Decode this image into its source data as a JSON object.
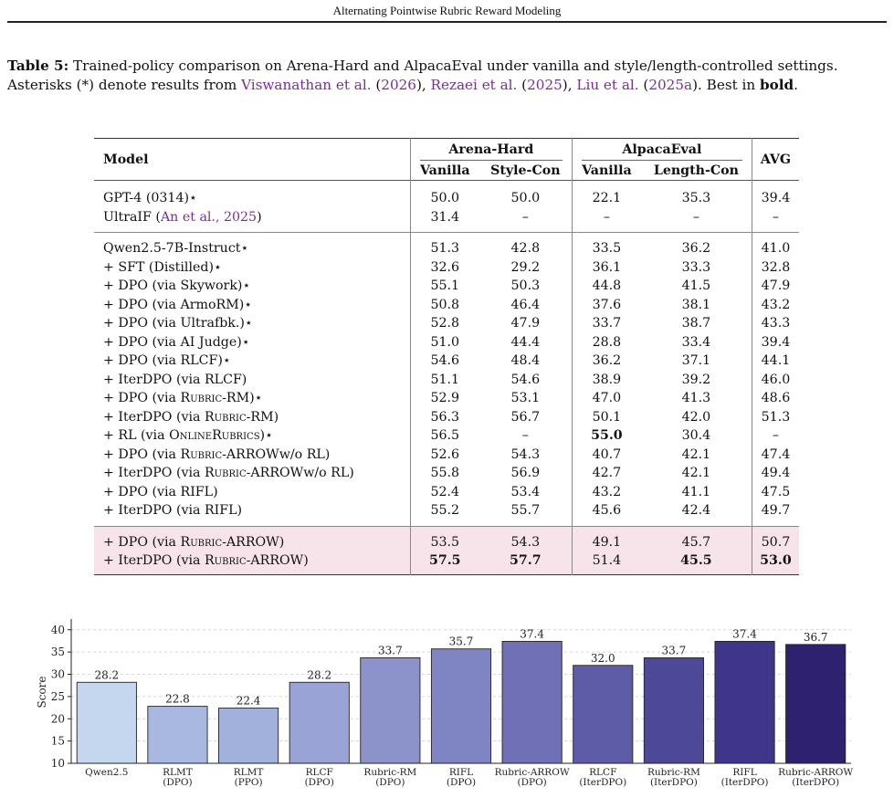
{
  "running_head": "Alternating Pointwise Rubric Reward Modeling",
  "caption": {
    "label": "Table 5:",
    "text_a": " Trained-policy comparison on Arena-Hard and AlpacaEval under vanilla and style/length-controlled settings. Asterisks (*) denote results from ",
    "cite1_name": "Viswanathan et al.",
    "cite1_year": "2026",
    "cite2_name": "Rezaei et al.",
    "cite2_year": "2025",
    "cite3_name": "Liu et al.",
    "cite3_year": "2025a",
    "text_b": "Best in ",
    "bold_word": "bold",
    "period": "."
  },
  "table": {
    "model_header": "Model",
    "group1": "Arena-Hard",
    "group2": "AlpacaEval",
    "avg_header": "AVG",
    "sub1": "Vanilla",
    "sub2": "Style-Con",
    "sub3": "Vanilla",
    "sub4": "Length-Con",
    "sections": [
      [
        {
          "model": "GPT-4 (0314)⋆",
          "v": [
            "50.0",
            "50.0",
            "22.1",
            "35.3",
            "39.4"
          ]
        },
        {
          "model_pre": "UltraIF (",
          "cite": "An et al., 2025",
          "model_post": ")",
          "v": [
            "31.4",
            "–",
            "–",
            "–",
            "–"
          ]
        }
      ],
      [
        {
          "model": "Qwen2.5-7B-Instruct⋆",
          "v": [
            "51.3",
            "42.8",
            "33.5",
            "36.2",
            "41.0"
          ]
        },
        {
          "model": "+ SFT (Distilled)⋆",
          "v": [
            "32.6",
            "29.2",
            "36.1",
            "33.3",
            "32.8"
          ]
        },
        {
          "model": "+ DPO (via Skywork)⋆",
          "v": [
            "55.1",
            "50.3",
            "44.8",
            "41.5",
            "47.9"
          ]
        },
        {
          "model": "+ DPO (via ArmoRM)⋆",
          "v": [
            "50.8",
            "46.4",
            "37.6",
            "38.1",
            "43.2"
          ]
        },
        {
          "model": "+ DPO (via Ultrafbk.)⋆",
          "v": [
            "52.8",
            "47.9",
            "33.7",
            "38.7",
            "43.3"
          ]
        },
        {
          "model": "+ DPO (via AI Judge)⋆",
          "v": [
            "51.0",
            "44.4",
            "28.8",
            "33.4",
            "39.4"
          ]
        },
        {
          "model": "+ DPO (via RLCF)⋆",
          "v": [
            "54.6",
            "48.4",
            "36.2",
            "37.1",
            "44.1"
          ]
        },
        {
          "model": "+ IterDPO (via RLCF)",
          "v": [
            "51.1",
            "54.6",
            "38.9",
            "39.2",
            "46.0"
          ]
        },
        {
          "model_pre": "+ DPO (via ",
          "sc": "Rubric",
          "model_post": "-RM)⋆",
          "v": [
            "52.9",
            "53.1",
            "47.0",
            "41.3",
            "48.6"
          ]
        },
        {
          "model_pre": "+ IterDPO (via ",
          "sc": "Rubric",
          "model_post": "-RM)",
          "v": [
            "56.3",
            "56.7",
            "50.1",
            "42.0",
            "51.3"
          ]
        },
        {
          "model_pre": "+ RL (via ",
          "sc": "OnlineRubrics",
          "model_post": ")⋆",
          "v": [
            "56.5",
            "–",
            "55.0",
            "30.4",
            "–"
          ],
          "bold": [
            2
          ]
        },
        {
          "model_pre": "+ DPO (via ",
          "sc": "Rubric",
          "model_post": "-ARROWw/o RL)",
          "v": [
            "52.6",
            "54.3",
            "40.7",
            "42.1",
            "47.4"
          ]
        },
        {
          "model_pre": "+ IterDPO (via ",
          "sc": "Rubric",
          "model_post": "-ARROWw/o RL)",
          "v": [
            "55.8",
            "56.9",
            "42.7",
            "42.1",
            "49.4"
          ]
        },
        {
          "model": "+ DPO (via RIFL)",
          "v": [
            "52.4",
            "53.4",
            "43.2",
            "41.1",
            "47.5"
          ]
        },
        {
          "model": "+ IterDPO (via RIFL)",
          "v": [
            "55.2",
            "55.7",
            "45.6",
            "42.4",
            "49.7"
          ]
        }
      ],
      [
        {
          "model_pre": "+ DPO (via ",
          "sc": "Rubric",
          "model_post": "-ARROW)",
          "v": [
            "53.5",
            "54.3",
            "49.1",
            "45.7",
            "50.7"
          ]
        },
        {
          "model_pre": "+ IterDPO (via ",
          "sc": "Rubric",
          "model_post": "-ARROW)",
          "v": [
            "57.5",
            "57.7",
            "51.4",
            "45.5",
            "53.0"
          ],
          "bold": [
            0,
            1,
            3,
            4
          ]
        }
      ]
    ]
  },
  "chart_data": {
    "type": "bar",
    "ylabel": "Score",
    "ylim": [
      10,
      42
    ],
    "yticks": [
      10,
      15,
      20,
      25,
      30,
      35,
      40
    ],
    "categories": [
      [
        "Qwen2.5"
      ],
      [
        "RLMT",
        "(DPO)"
      ],
      [
        "RLMT",
        "(PPO)"
      ],
      [
        "RLCF",
        "(DPO)"
      ],
      [
        "Rubric-RM",
        "(DPO)"
      ],
      [
        "RIFL",
        "(DPO)"
      ],
      [
        "Rubric-ARROW",
        "(DPO)"
      ],
      [
        "RLCF",
        "(IterDPO)"
      ],
      [
        "Rubric-RM",
        "(IterDPO)"
      ],
      [
        "RIFL",
        "(IterDPO)"
      ],
      [
        "Rubric-ARROW",
        "(IterDPO)"
      ]
    ],
    "values": [
      28.2,
      22.8,
      22.4,
      28.2,
      33.7,
      35.7,
      37.4,
      32.0,
      33.7,
      37.4,
      36.7
    ],
    "colors": [
      "#c5d6ef",
      "#a9b8e0",
      "#a2b0dc",
      "#9aa3d5",
      "#8c93cb",
      "#7f84c2",
      "#6f70b5",
      "#5e5ca6",
      "#4e4898",
      "#3f358a",
      "#2e2270"
    ]
  }
}
